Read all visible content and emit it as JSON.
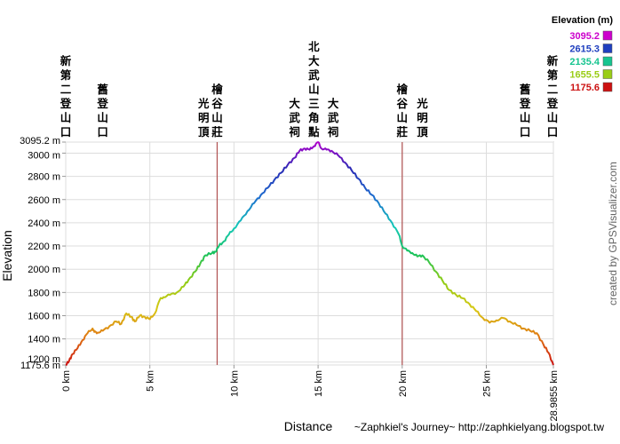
{
  "chart_data": {
    "type": "line",
    "xlabel": "Distance",
    "ylabel": "Elevation",
    "xlim": [
      0,
      28.9855
    ],
    "ylim": [
      1175.6,
      3095.2
    ],
    "x_ticks": [
      {
        "value": 0,
        "label": "0 km"
      },
      {
        "value": 5,
        "label": "5 km"
      },
      {
        "value": 10,
        "label": "10 km"
      },
      {
        "value": 15,
        "label": "15 km"
      },
      {
        "value": 20,
        "label": "20 km"
      },
      {
        "value": 25,
        "label": "25 km"
      },
      {
        "value": 28.9855,
        "label": "28.9855 km"
      }
    ],
    "y_ticks": [
      {
        "value": 1175.6,
        "label": "1175.6 m"
      },
      {
        "value": 1200,
        "label": "1200 m"
      },
      {
        "value": 1400,
        "label": "1400 m"
      },
      {
        "value": 1600,
        "label": "1600 m"
      },
      {
        "value": 1800,
        "label": "1800 m"
      },
      {
        "value": 2000,
        "label": "2000 m"
      },
      {
        "value": 2200,
        "label": "2200 m"
      },
      {
        "value": 2400,
        "label": "2400 m"
      },
      {
        "value": 2600,
        "label": "2600 m"
      },
      {
        "value": 2800,
        "label": "2800 m"
      },
      {
        "value": 3000,
        "label": "3000 m"
      },
      {
        "value": 3095.2,
        "label": "3095.2 m"
      }
    ],
    "series": [
      {
        "x": [
          0,
          0.2,
          0.4,
          0.7,
          1.0,
          1.3,
          1.6,
          1.7,
          1.9,
          2.2,
          2.6,
          3.0,
          3.3,
          3.6,
          3.9,
          4.1,
          4.4,
          4.7,
          5.0,
          5.3,
          5.6,
          5.8,
          6.2,
          6.6,
          7.0,
          7.3,
          7.7,
          8.0,
          8.3,
          8.7,
          8.9,
          9.1,
          9.4,
          9.7,
          10.0,
          10.4,
          10.8,
          11.2,
          11.6,
          12.0,
          12.4,
          12.8,
          13.2,
          13.6,
          13.9,
          14.2,
          14.5,
          14.75,
          15.0,
          15.2,
          15.5,
          15.8,
          16.2,
          16.6,
          17.0,
          17.4,
          17.8,
          18.2,
          18.6,
          19.0,
          19.4,
          19.8,
          20.0,
          20.3,
          20.6,
          20.9,
          21.2,
          21.6,
          22.0,
          22.4,
          22.8,
          23.2,
          23.6,
          24.0,
          24.4,
          24.8,
          25.2,
          25.6,
          26.0,
          26.4,
          26.8,
          27.2,
          27.6,
          28.0,
          28.4,
          28.7,
          28.9855
        ],
        "y": [
          1175.6,
          1210,
          1270,
          1320,
          1390,
          1450,
          1490,
          1460,
          1455,
          1470,
          1510,
          1550,
          1530,
          1620,
          1590,
          1550,
          1600,
          1590,
          1570,
          1620,
          1740,
          1760,
          1780,
          1800,
          1850,
          1910,
          1980,
          2050,
          2120,
          2140,
          2150,
          2200,
          2240,
          2300,
          2350,
          2420,
          2500,
          2570,
          2640,
          2700,
          2770,
          2830,
          2900,
          2960,
          3020,
          3040,
          3030,
          3060,
          3095.2,
          3040,
          3030,
          3020,
          2980,
          2920,
          2850,
          2780,
          2700,
          2640,
          2570,
          2480,
          2400,
          2300,
          2200,
          2160,
          2140,
          2110,
          2120,
          2060,
          1980,
          1900,
          1820,
          1780,
          1750,
          1700,
          1640,
          1580,
          1540,
          1560,
          1580,
          1550,
          1520,
          1490,
          1470,
          1450,
          1350,
          1280,
          1175.6
        ]
      }
    ],
    "markers": [
      {
        "x": 9.0,
        "label": "檜谷山莊"
      },
      {
        "x": 20.0,
        "label": "檜谷山莊"
      }
    ],
    "annotations": [
      {
        "text": "新第二登山口",
        "x": 0
      },
      {
        "text": "舊登山口",
        "x": 2.2
      },
      {
        "text": "光明頂",
        "x": 8.2
      },
      {
        "text": "大武祠",
        "x": 13.6
      },
      {
        "text": "北大武山三角點",
        "x": 14.75
      },
      {
        "text": "大武祠",
        "x": 15.9
      },
      {
        "text": "光明頂",
        "x": 21.2
      },
      {
        "text": "舊登山口",
        "x": 27.3
      },
      {
        "text": "新第二登山口",
        "x": 28.9855
      }
    ],
    "legend": {
      "title": "Elevation (m)",
      "position": "top-right",
      "entries": [
        {
          "label": "3095.2",
          "color": "#cc00cc"
        },
        {
          "label": "2615.3",
          "color": "#1f3fbf"
        },
        {
          "label": "2135.4",
          "color": "#16c48f"
        },
        {
          "label": "1655.5",
          "color": "#9acd17"
        },
        {
          "label": "1175.6",
          "color": "#cc1111"
        }
      ]
    },
    "grid": true
  },
  "credit_side": "created by GPSVisualizer.com",
  "credit_bottom": "~Zaphkiel's Journey~ http://zaphkielyang.blogspot.tw"
}
